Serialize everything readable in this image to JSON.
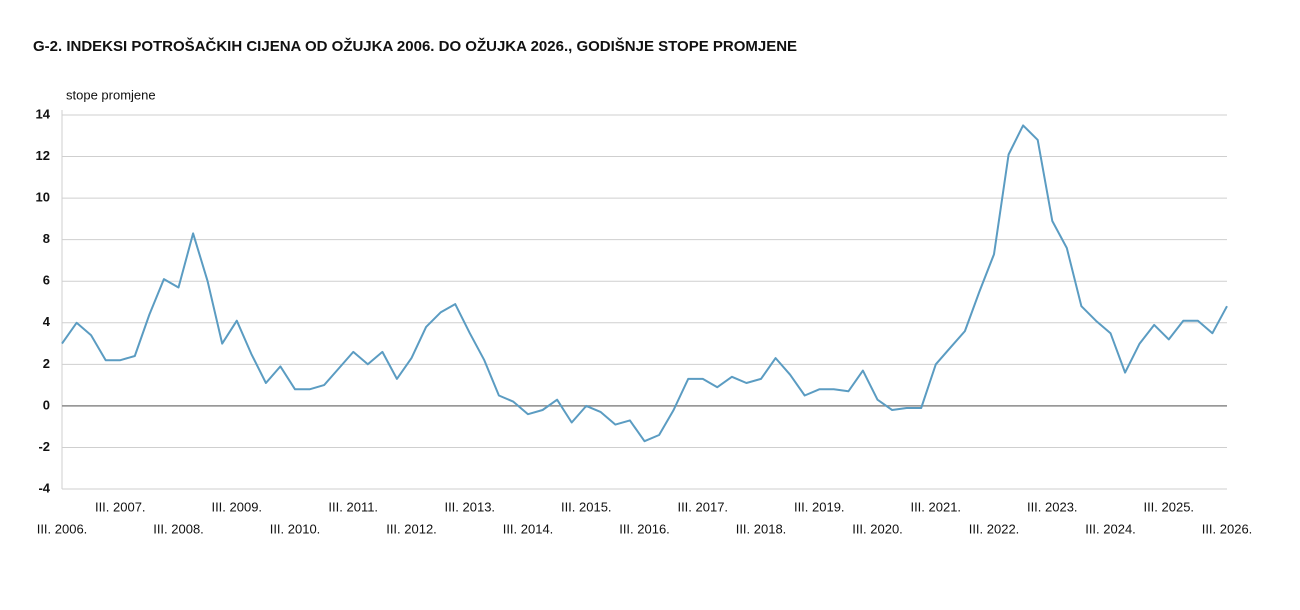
{
  "chart_data": {
    "type": "line",
    "title": "G-2.  INDEKSI POTROŠAČKIH CIJENA OD OŽUJKA 2006. DO OŽUJKA 2026., GODIŠNJE STOPE PROMJENE",
    "y_label": "stope promjene",
    "categories": [
      "III. 2006.",
      null,
      null,
      null,
      "III. 2007.",
      null,
      null,
      null,
      "III. 2008.",
      null,
      null,
      null,
      "III. 2009.",
      null,
      null,
      null,
      "III. 2010.",
      null,
      null,
      null,
      "III. 2011.",
      null,
      null,
      null,
      "III. 2012.",
      null,
      null,
      null,
      "III. 2013.",
      null,
      null,
      null,
      "III. 2014.",
      null,
      null,
      null,
      "III. 2015.",
      null,
      null,
      null,
      "III. 2016.",
      null,
      null,
      null,
      "III. 2017.",
      null,
      null,
      null,
      "III. 2018.",
      null,
      null,
      null,
      "III. 2019.",
      null,
      null,
      null,
      "III. 2020.",
      null,
      null,
      null,
      "III. 2021.",
      null,
      null,
      null,
      "III. 2022.",
      null,
      null,
      null,
      "III. 2023.",
      null,
      null,
      null,
      "III. 2024.",
      null,
      null,
      null,
      "III. 2025.",
      null,
      null,
      null,
      "III. 2026."
    ],
    "series": [
      {
        "name": "stope promjene",
        "color": "#5b9cc2",
        "values": [
          3.0,
          4.0,
          3.4,
          2.2,
          2.2,
          2.4,
          4.4,
          6.1,
          5.7,
          8.3,
          6.0,
          3.0,
          4.1,
          2.5,
          1.1,
          1.9,
          0.8,
          0.8,
          1.0,
          1.8,
          2.6,
          2.0,
          2.6,
          1.3,
          2.3,
          3.8,
          4.5,
          4.9,
          3.5,
          2.2,
          0.5,
          0.2,
          -0.4,
          -0.2,
          0.3,
          -0.8,
          0.0,
          -0.3,
          -0.9,
          -0.7,
          -1.7,
          -1.4,
          -0.2,
          1.3,
          1.3,
          0.9,
          1.4,
          1.1,
          1.3,
          2.3,
          1.5,
          0.5,
          0.8,
          0.8,
          0.7,
          1.7,
          0.3,
          -0.2,
          -0.1,
          -0.1,
          2.0,
          2.8,
          3.6,
          5.5,
          7.3,
          12.1,
          13.5,
          12.8,
          8.9,
          7.6,
          4.8,
          4.1,
          3.5,
          1.6,
          3.0,
          3.9,
          3.2,
          4.1,
          4.1,
          3.5,
          4.8
        ]
      }
    ],
    "ylim": [
      -4,
      14
    ],
    "yticks": [
      -4,
      -2,
      0,
      2,
      4,
      6,
      8,
      10,
      12,
      14
    ],
    "grid": true
  }
}
